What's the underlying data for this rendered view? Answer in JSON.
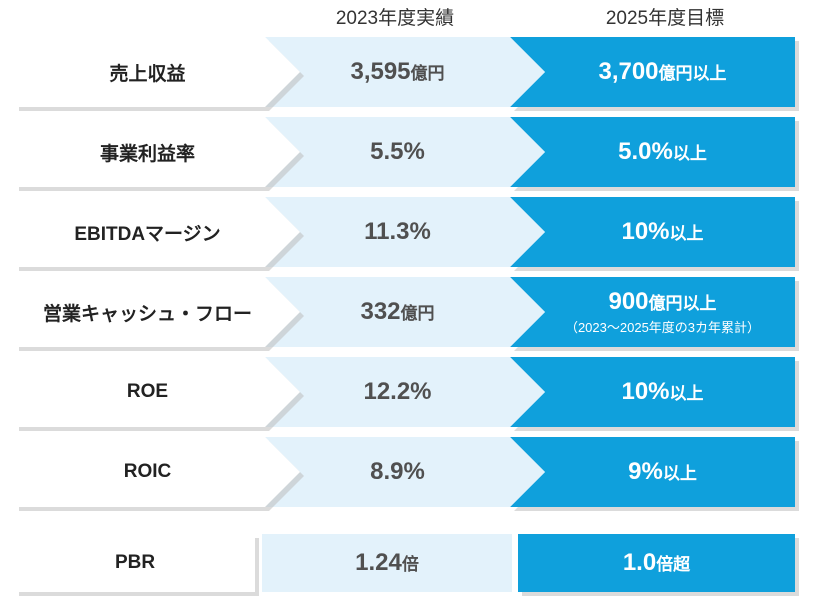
{
  "headers": {
    "actual": "2023年度実績",
    "target": "2025年度目標"
  },
  "colors": {
    "actual_fill": "#e3f2fb",
    "target_fill": "#0fa0dc",
    "label_fill": "#ffffff"
  },
  "rows": [
    {
      "label": "売上収益",
      "actual": {
        "value": "3,595",
        "unit": "億円"
      },
      "target": {
        "value": "3,700",
        "unit": "億円以上",
        "note": ""
      }
    },
    {
      "label": "事業利益率",
      "actual": {
        "value": "5.5%",
        "unit": ""
      },
      "target": {
        "value": "5.0%",
        "unit": "以上",
        "note": ""
      }
    },
    {
      "label": "EBITDAマージン",
      "actual": {
        "value": "11.3%",
        "unit": ""
      },
      "target": {
        "value": "10%",
        "unit": "以上",
        "note": ""
      }
    },
    {
      "label": "営業キャッシュ・フロー",
      "actual": {
        "value": "332",
        "unit": "億円"
      },
      "target": {
        "value": "900",
        "unit": "億円以上",
        "note": "（2023～2025年度の3カ年累計）"
      }
    },
    {
      "label": "ROE",
      "actual": {
        "value": "12.2%",
        "unit": ""
      },
      "target": {
        "value": "10%",
        "unit": "以上",
        "note": ""
      }
    },
    {
      "label": "ROIC",
      "actual": {
        "value": "8.9%",
        "unit": ""
      },
      "target": {
        "value": "9%",
        "unit": "以上",
        "note": ""
      }
    }
  ],
  "pbr": {
    "label": "PBR",
    "actual": {
      "value": "1.24",
      "unit": "倍"
    },
    "target": {
      "value": "1.0",
      "unit": "倍超"
    }
  }
}
